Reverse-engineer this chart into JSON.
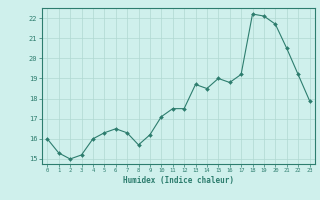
{
  "x": [
    0,
    1,
    2,
    3,
    4,
    5,
    6,
    7,
    8,
    9,
    10,
    11,
    12,
    13,
    14,
    15,
    16,
    17,
    18,
    19,
    20,
    21,
    22,
    23
  ],
  "y": [
    16.0,
    15.3,
    15.0,
    15.2,
    16.0,
    16.3,
    16.5,
    16.3,
    15.7,
    16.2,
    17.1,
    17.5,
    17.5,
    18.7,
    18.5,
    19.0,
    18.8,
    19.2,
    22.2,
    22.1,
    21.7,
    20.5,
    19.2,
    17.9
  ],
  "xlim": [
    -0.5,
    23.5
  ],
  "ylim": [
    14.75,
    22.5
  ],
  "yticks": [
    15,
    16,
    17,
    18,
    19,
    20,
    21,
    22
  ],
  "xticks": [
    0,
    1,
    2,
    3,
    4,
    5,
    6,
    7,
    8,
    9,
    10,
    11,
    12,
    13,
    14,
    15,
    16,
    17,
    18,
    19,
    20,
    21,
    22,
    23
  ],
  "xlabel": "Humidex (Indice chaleur)",
  "line_color": "#2d7d6e",
  "marker_color": "#2d7d6e",
  "bg_color": "#cff0ec",
  "grid_color": "#b0d8d2",
  "axis_color": "#2d7d6e",
  "tick_color": "#2d7d6e",
  "label_color": "#2d7d6e"
}
